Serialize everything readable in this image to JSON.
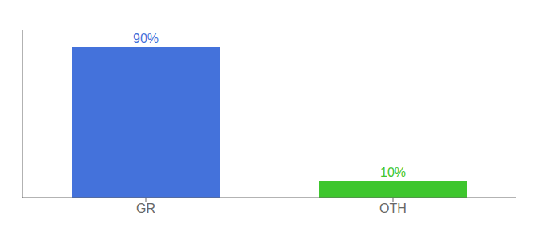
{
  "chart_data": {
    "type": "bar",
    "categories": [
      "GR",
      "OTH"
    ],
    "values": [
      90,
      10
    ],
    "value_labels": [
      "90%",
      "10%"
    ],
    "colors": [
      "#4472db",
      "#3ec62e"
    ],
    "ylim": [
      0,
      100
    ],
    "data_labels": true,
    "tick_labels": "x",
    "grid": false
  }
}
